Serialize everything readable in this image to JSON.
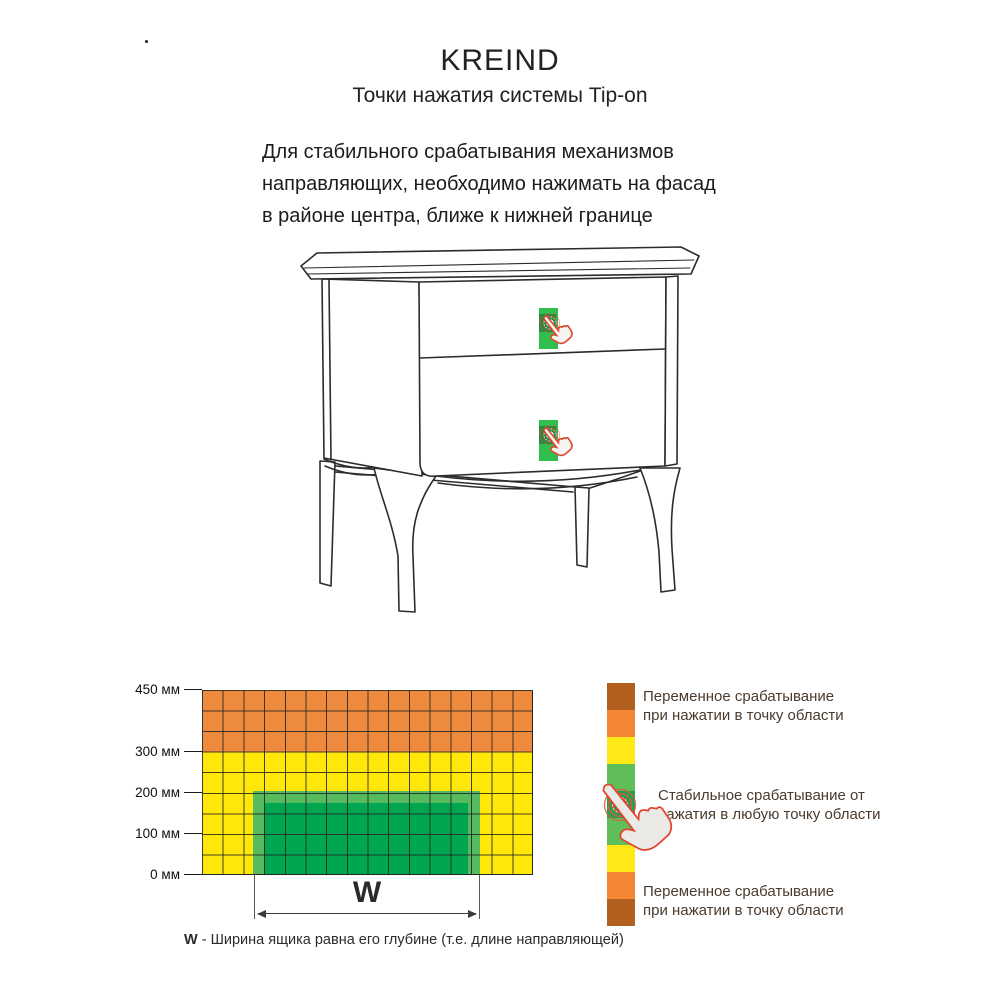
{
  "page": {
    "brand": "KREIND",
    "subtitle": "Точки нажатия системы Tip-on",
    "stray_dot": "·"
  },
  "intro": "Для стабильного срабатывания механизмов\nнаправляющих, необходимо нажимать на фасад\nв районе центра, ближе к нижней границе",
  "chart_data": {
    "type": "heatmap",
    "y_unit": "мм",
    "y_ticks": [
      450,
      300,
      200,
      100,
      0
    ],
    "y_tick_labels": [
      "450 мм",
      "300 мм",
      "200 мм",
      "100 мм",
      "0 мм"
    ],
    "grid": {
      "columns": 16,
      "rows": 9,
      "cell_mm": 50,
      "gridlines": true
    },
    "zones": [
      {
        "name": "variable-response-top",
        "color": "#EE8A3D",
        "from_mm": 300,
        "to_mm": 450,
        "width": "full"
      },
      {
        "name": "variable-response",
        "color": "#FFE70A",
        "from_mm": 0,
        "to_mm": 300,
        "width": "full"
      },
      {
        "name": "stable-response-border",
        "color": "#56BA5E",
        "from_mm": 0,
        "to_mm": 200,
        "width": "W"
      },
      {
        "name": "stable-response-core",
        "color": "#00A750",
        "from_mm": 0,
        "to_mm": 175,
        "width": "W"
      }
    ],
    "measure": {
      "label": "W",
      "note_term": "W",
      "note_rest": " - Ширина ящика равна его глубине (т.е. длине направляющей)"
    },
    "legend": {
      "bar_segments": [
        "#B2601F",
        "#F58634",
        "#FFE818",
        "#60BE58",
        "#1BA24C",
        "#60BE58",
        "#FFE818",
        "#F58634",
        "#B2601F"
      ],
      "items": [
        {
          "name": "variable-top",
          "text": "Переменное срабатывание\nпри нажатии в точку области"
        },
        {
          "name": "stable",
          "text": "Стабильное срабатывание от\nнажатия в любую точку области"
        },
        {
          "name": "variable-bottom",
          "text": "Переменное срабатывание\nпри нажатии в точку области"
        }
      ]
    }
  }
}
